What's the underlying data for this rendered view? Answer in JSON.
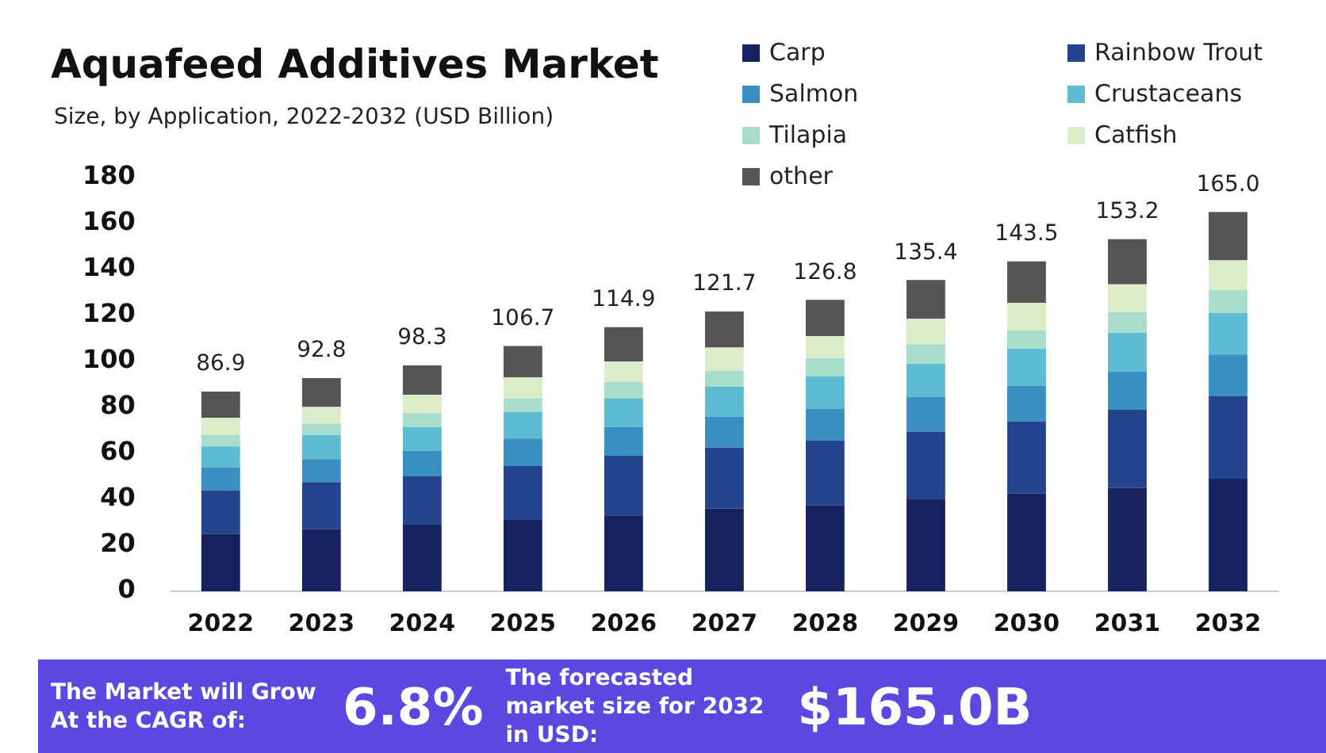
{
  "chart_data": {
    "type": "bar",
    "title": "Aquafeed Additives Market",
    "subtitle": "Size, by Application, 2022-2032 (USD Billion)",
    "categories": [
      "2022",
      "2023",
      "2024",
      "2025",
      "2026",
      "2027",
      "2028",
      "2029",
      "2030",
      "2031",
      "2032"
    ],
    "stacked": true,
    "series": [
      {
        "name": "Carp",
        "color": "#16215f",
        "values": [
          25,
          27,
          29,
          31,
          33,
          36,
          37.5,
          40,
          42.5,
          45,
          49
        ]
      },
      {
        "name": "Rainbow Trout",
        "color": "#24448e",
        "values": [
          19,
          20.5,
          21,
          23.5,
          26,
          26.5,
          28,
          29.5,
          31.5,
          34,
          36
        ]
      },
      {
        "name": "Salmon",
        "color": "#3a8fc1",
        "values": [
          10,
          10,
          11,
          12,
          12.5,
          13.5,
          14,
          15,
          15.5,
          16.5,
          18
        ]
      },
      {
        "name": "Crustaceans",
        "color": "#5dbcd2",
        "values": [
          9,
          10.5,
          10.5,
          11.5,
          12.5,
          13,
          14,
          14.5,
          16,
          17,
          18
        ]
      },
      {
        "name": "Tilapia",
        "color": "#a8dccd",
        "values": [
          5,
          5,
          6,
          6,
          7,
          7,
          8,
          8.5,
          8,
          9,
          10
        ]
      },
      {
        "name": "Catfish",
        "color": "#dcecc8",
        "values": [
          7.5,
          7.2,
          8,
          9,
          9,
          10,
          9.5,
          11,
          12,
          12,
          13
        ]
      },
      {
        "name": "other",
        "color": "#555555",
        "values": [
          11.4,
          12.6,
          12.8,
          13.7,
          14.9,
          15.7,
          15.8,
          16.9,
          18,
          19.7,
          21
        ]
      }
    ],
    "totals": [
      "86.9",
      "92.8",
      "98.3",
      "106.7",
      "114.9",
      "121.7",
      "126.8",
      "135.4",
      "143.5",
      "153.2",
      "165.0"
    ],
    "ylim": [
      0,
      180
    ],
    "yticks": [
      0,
      20,
      40,
      60,
      80,
      100,
      120,
      140,
      160,
      180
    ],
    "grid": false,
    "legend": "top right",
    "annotations": [
      "The Market will Grow At the CAGR of:",
      "6.8%",
      "The forecasted market size for 2032 in USD:",
      "$165.0B"
    ]
  }
}
